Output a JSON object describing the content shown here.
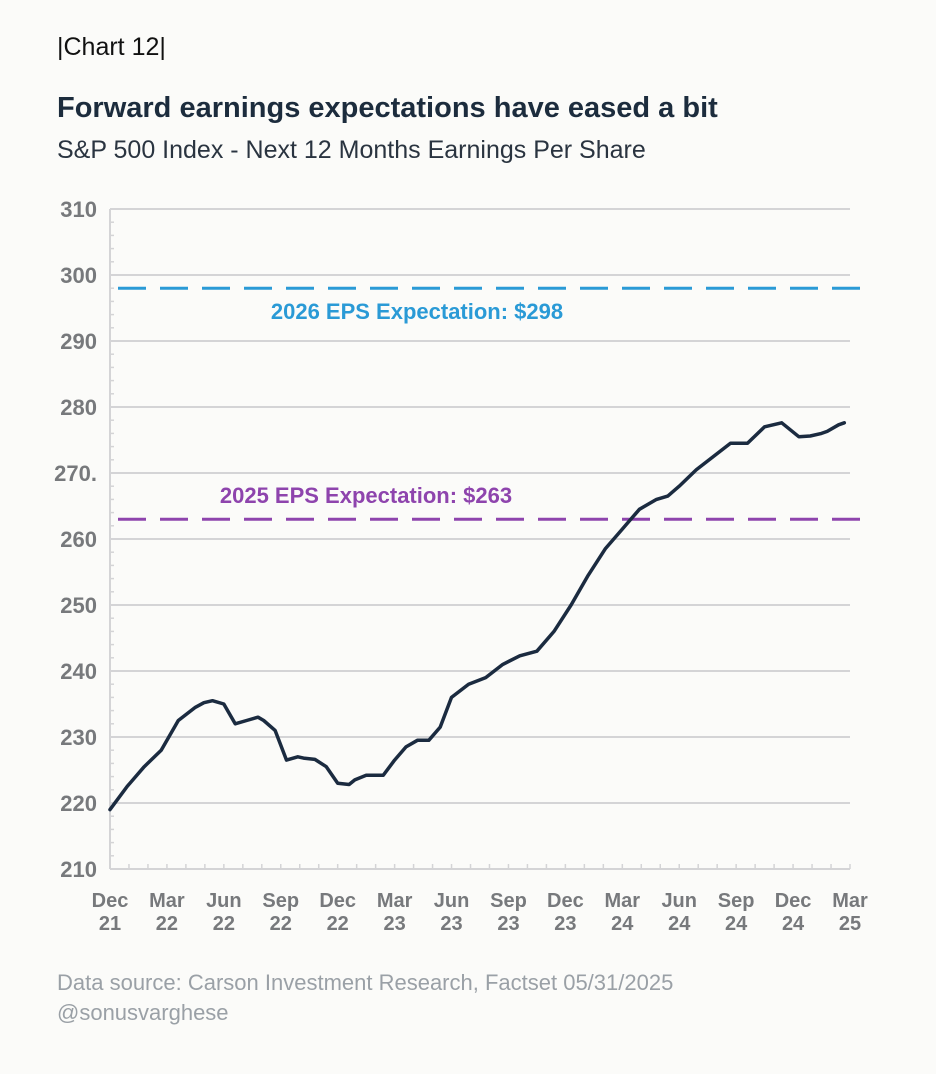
{
  "header": {
    "chart_label": "Chart 12",
    "title": "Forward earnings expectations have eased a bit",
    "subtitle": "S&P 500 Index - Next 12 Months Earnings Per Share"
  },
  "footer": {
    "source": "Data source: Carson Investment Research, Factset 05/31/2025",
    "handle": "@sonusvarghese"
  },
  "colors": {
    "line": "#1b2b40",
    "eps_2026": "#2a9ad6",
    "eps_2025": "#8e44ad",
    "grid": "#d4d4d6",
    "tick_text": "#77797c"
  },
  "chart_data": {
    "type": "line",
    "title": "Forward earnings expectations have eased a bit",
    "subtitle": "S&P 500 Index - Next 12 Months Earnings Per Share",
    "xlabel": "",
    "ylabel": "",
    "ylim": [
      210,
      310
    ],
    "yticks": [
      "310",
      "300",
      "290",
      "280",
      "270.",
      "260",
      "250",
      "240",
      "230",
      "220",
      "210"
    ],
    "xticks": [
      [
        "Dec",
        "21"
      ],
      [
        "Mar",
        "22"
      ],
      [
        "Jun",
        "22"
      ],
      [
        "Sep",
        "22"
      ],
      [
        "Dec",
        "22"
      ],
      [
        "Mar",
        "23"
      ],
      [
        "Jun",
        "23"
      ],
      [
        "Sep",
        "23"
      ],
      [
        "Dec",
        "23"
      ],
      [
        "Mar",
        "24"
      ],
      [
        "Jun",
        "24"
      ],
      [
        "Sep",
        "24"
      ],
      [
        "Dec",
        "24"
      ],
      [
        "Mar",
        "25"
      ]
    ],
    "grid": true,
    "reference_lines": [
      {
        "value": 298,
        "label": "2026 EPS Expectation: $298",
        "style": "dashed"
      },
      {
        "value": 263,
        "label": "2025 EPS Expectation: $263",
        "style": "dashed"
      }
    ],
    "series": [
      {
        "x": [
          0,
          0.3,
          0.6,
          0.9,
          1.2,
          1.5,
          1.65,
          1.8,
          2.0,
          2.2,
          2.4,
          2.6,
          2.7,
          2.9,
          3.1,
          3.3,
          3.4,
          3.6,
          3.8,
          4.0,
          4.2,
          4.3,
          4.5,
          4.6,
          4.8,
          5.0,
          5.2,
          5.4,
          5.6,
          5.8,
          6.0,
          6.3,
          6.6,
          6.9,
          7.2,
          7.5,
          7.8,
          8.1,
          8.4,
          8.7,
          9.0,
          9.3,
          9.6,
          9.8,
          10.0,
          10.3,
          10.6,
          10.9,
          11.2,
          11.5,
          11.8,
          12.1,
          12.3,
          12.5,
          12.6,
          12.8,
          12.9
        ],
        "values": [
          219,
          222.5,
          225.5,
          228,
          232.5,
          234.5,
          235.2,
          235.5,
          235,
          232,
          232.5,
          233,
          232.5,
          231,
          226.5,
          227,
          226.8,
          226.6,
          225.5,
          223,
          222.8,
          223.5,
          224.2,
          224.2,
          224.2,
          226.5,
          228.5,
          229.5,
          229.5,
          231.5,
          236,
          238,
          239,
          241,
          242.3,
          243,
          246,
          250,
          254.5,
          258.5,
          261.5,
          264.5,
          266,
          266.5,
          268,
          270.5,
          272.5,
          274.5,
          274.5,
          277,
          277.6,
          275.5,
          275.6,
          276,
          276.3,
          277.3,
          277.6
        ]
      }
    ]
  }
}
